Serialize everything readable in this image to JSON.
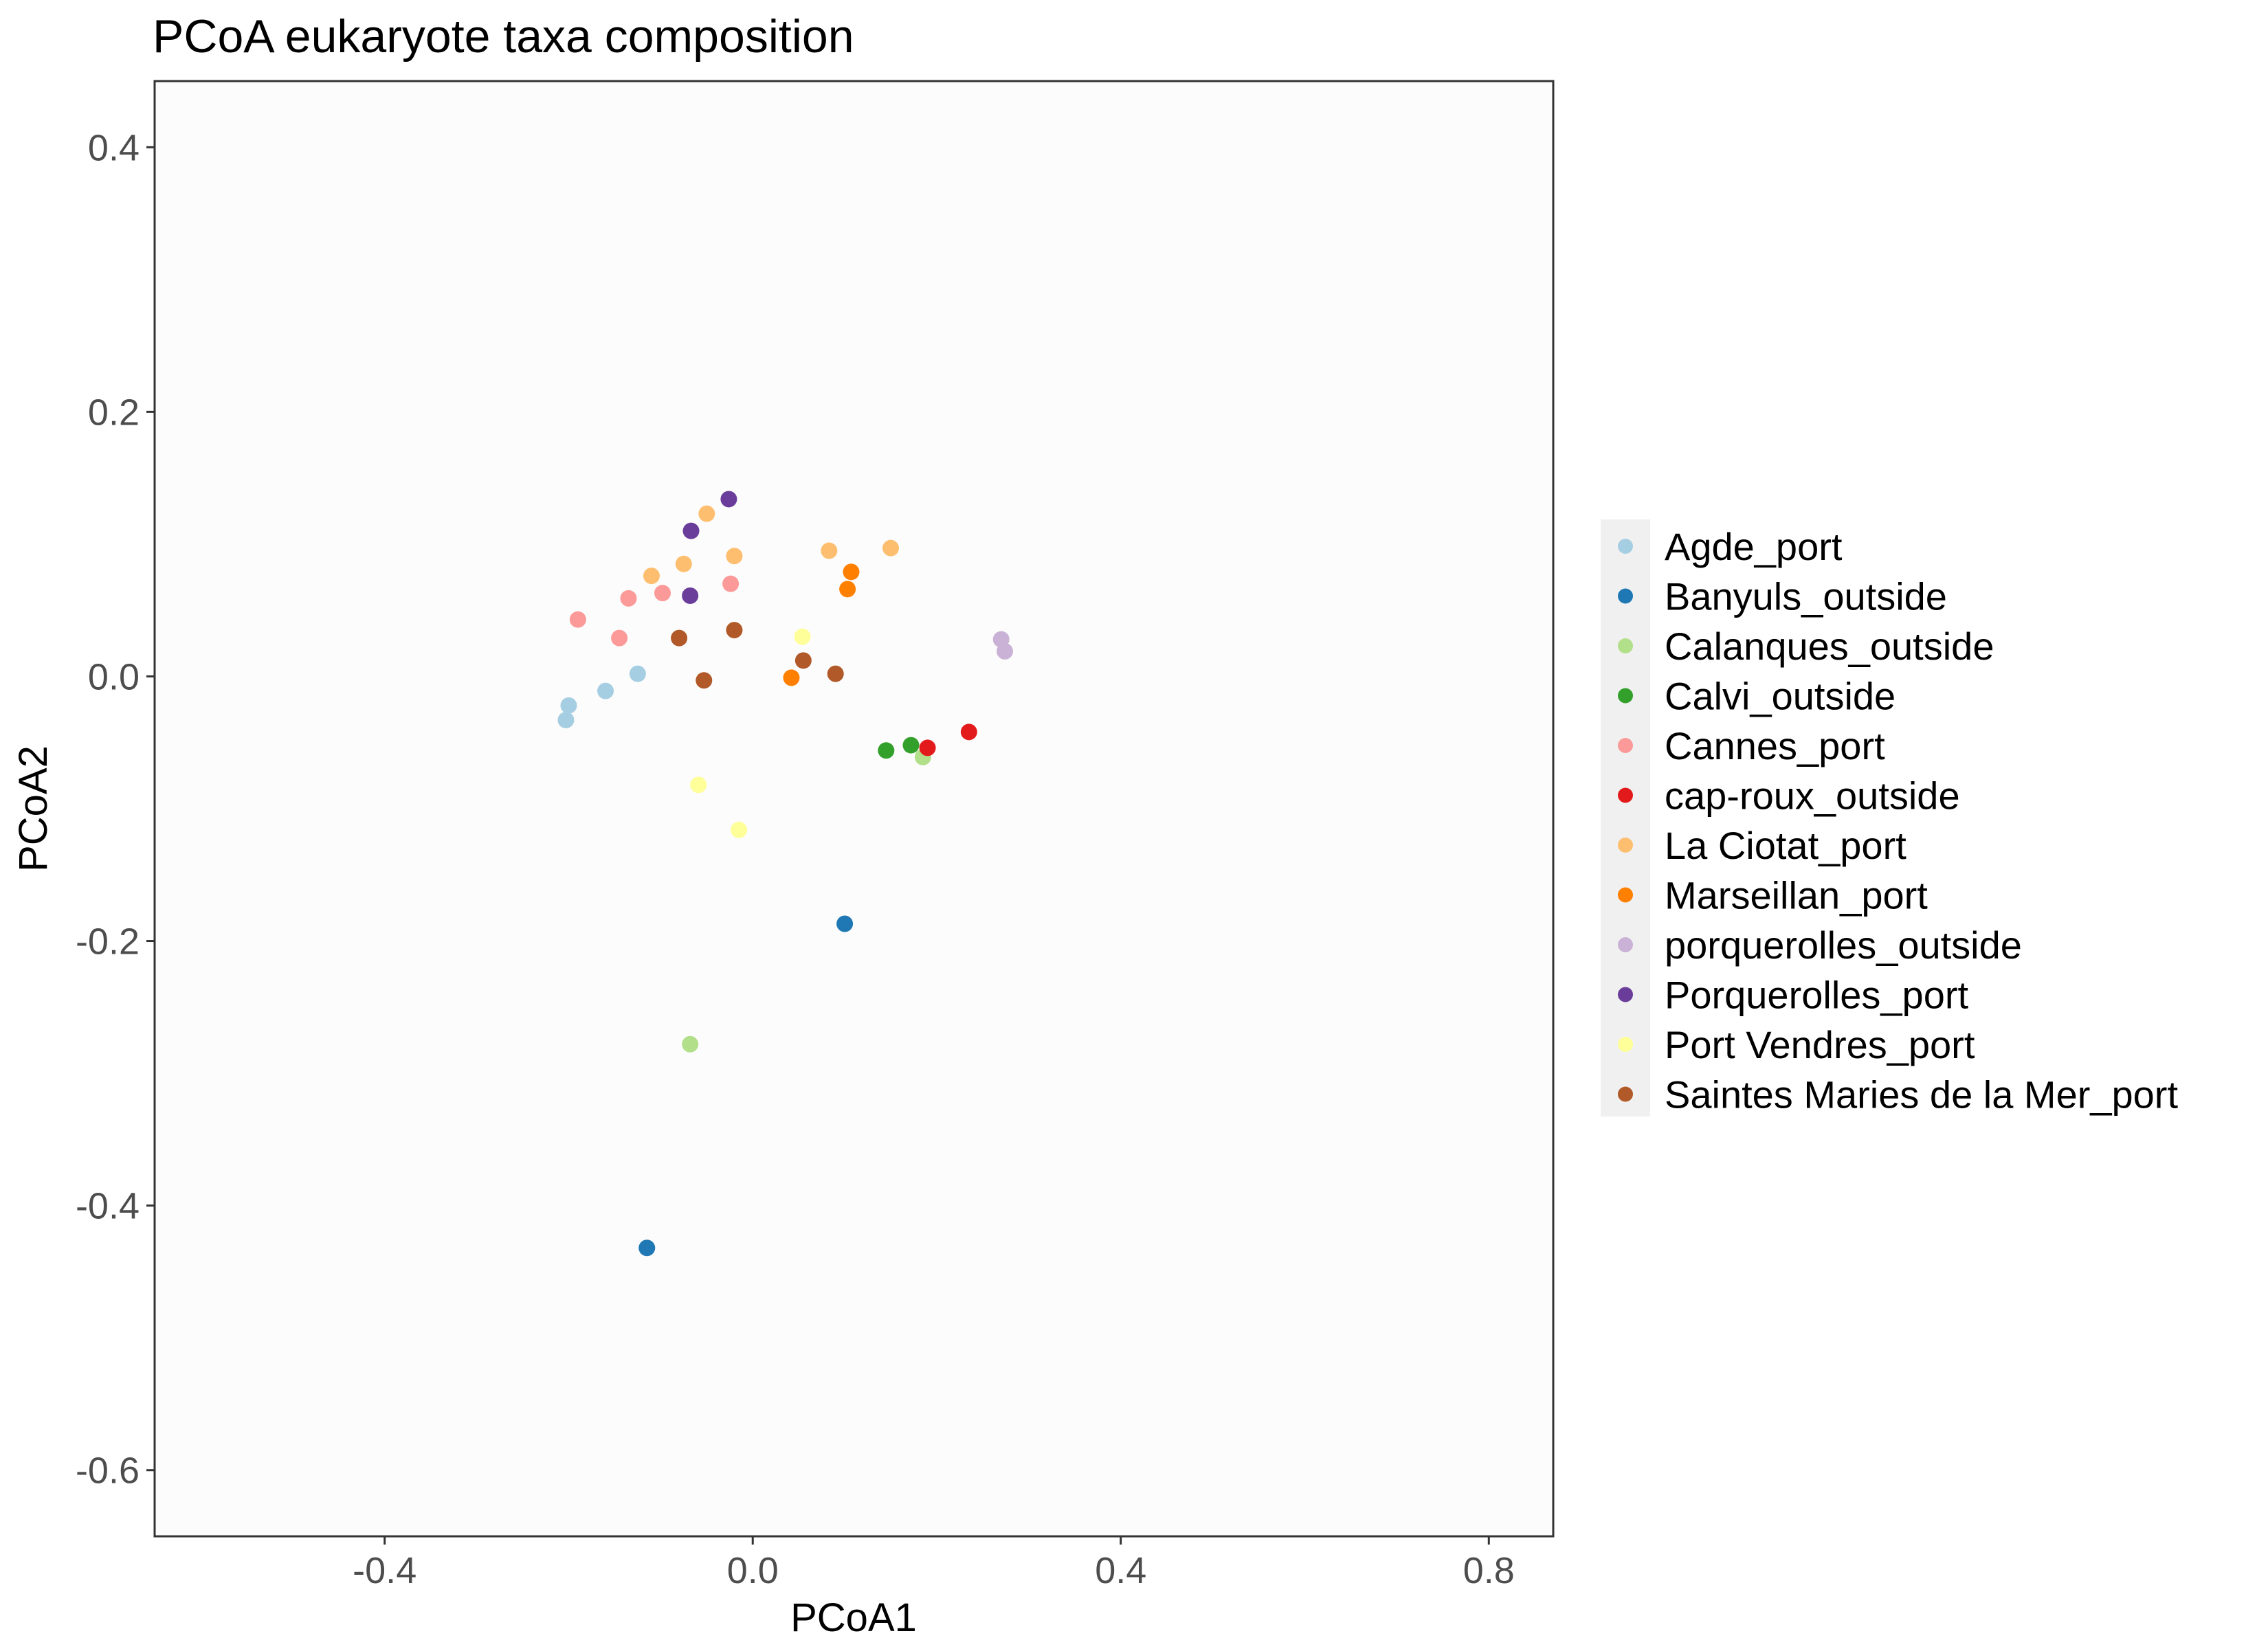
{
  "chart_data": {
    "type": "scatter",
    "title": "PCoA eukaryote taxa composition",
    "xlabel": "PCoA1",
    "ylabel": "PCoA2",
    "xlim": [
      -0.65,
      0.87
    ],
    "ylim": [
      -0.65,
      0.45
    ],
    "xticks": [
      -0.4,
      0.0,
      0.4,
      0.8
    ],
    "xtick_labels": [
      "-0.4",
      "0.0",
      "0.4",
      "0.8"
    ],
    "yticks": [
      -0.6,
      -0.4,
      -0.2,
      0.0,
      0.2,
      0.4
    ],
    "ytick_labels": [
      "-0.6",
      "-0.4",
      "-0.2",
      "0.0",
      "0.2",
      "0.4"
    ],
    "grid": false,
    "legend_position": "right",
    "series": [
      {
        "name": "Agde_port",
        "color": "#a6cee3",
        "points": [
          [
            -0.2,
            -0.022
          ],
          [
            -0.203,
            -0.033
          ],
          [
            -0.16,
            -0.011
          ],
          [
            -0.125,
            0.002
          ]
        ]
      },
      {
        "name": "Banyuls_outside",
        "color": "#1f78b4",
        "points": [
          [
            0.1,
            -0.187
          ],
          [
            -0.115,
            -0.432
          ]
        ]
      },
      {
        "name": "Calanques_outside",
        "color": "#b2df8a",
        "points": [
          [
            0.185,
            -0.061
          ],
          [
            -0.068,
            -0.278
          ]
        ]
      },
      {
        "name": "Calvi_outside",
        "color": "#33a02c",
        "points": [
          [
            0.145,
            -0.056
          ],
          [
            0.172,
            -0.052
          ]
        ]
      },
      {
        "name": "Cannes_port",
        "color": "#fb9a99",
        "points": [
          [
            -0.19,
            0.043
          ],
          [
            -0.135,
            0.059
          ],
          [
            -0.098,
            0.063
          ],
          [
            -0.145,
            0.029
          ],
          [
            -0.024,
            0.07
          ]
        ]
      },
      {
        "name": "cap-roux_outside",
        "color": "#e31a1c",
        "points": [
          [
            0.19,
            -0.054
          ],
          [
            0.235,
            -0.042
          ]
        ]
      },
      {
        "name": "La Ciotat_port",
        "color": "#fdbf6f",
        "points": [
          [
            -0.05,
            0.123
          ],
          [
            -0.075,
            0.085
          ],
          [
            -0.11,
            0.076
          ],
          [
            -0.02,
            0.091
          ],
          [
            0.083,
            0.095
          ],
          [
            0.15,
            0.097
          ]
        ]
      },
      {
        "name": "Marseillan_port",
        "color": "#ff7f00",
        "points": [
          [
            0.107,
            0.079
          ],
          [
            0.103,
            0.066
          ],
          [
            0.042,
            -0.001
          ]
        ]
      },
      {
        "name": "porquerolles_outside",
        "color": "#cab2d6",
        "points": [
          [
            0.27,
            0.028
          ],
          [
            0.274,
            0.019
          ]
        ]
      },
      {
        "name": "Porquerolles_port",
        "color": "#6a3d9a",
        "points": [
          [
            -0.026,
            0.134
          ],
          [
            -0.067,
            0.11
          ],
          [
            -0.068,
            0.061
          ]
        ]
      },
      {
        "name": "Port Vendres_port",
        "color": "#ffff99",
        "points": [
          [
            0.054,
            0.03
          ],
          [
            -0.059,
            -0.082
          ],
          [
            -0.015,
            -0.116
          ]
        ]
      },
      {
        "name": "Saintes Maries de la Mer_port",
        "color": "#b15928",
        "points": [
          [
            -0.08,
            0.029
          ],
          [
            -0.02,
            0.035
          ],
          [
            0.055,
            0.012
          ],
          [
            -0.053,
            -0.003
          ],
          [
            0.09,
            0.002
          ]
        ]
      }
    ]
  }
}
